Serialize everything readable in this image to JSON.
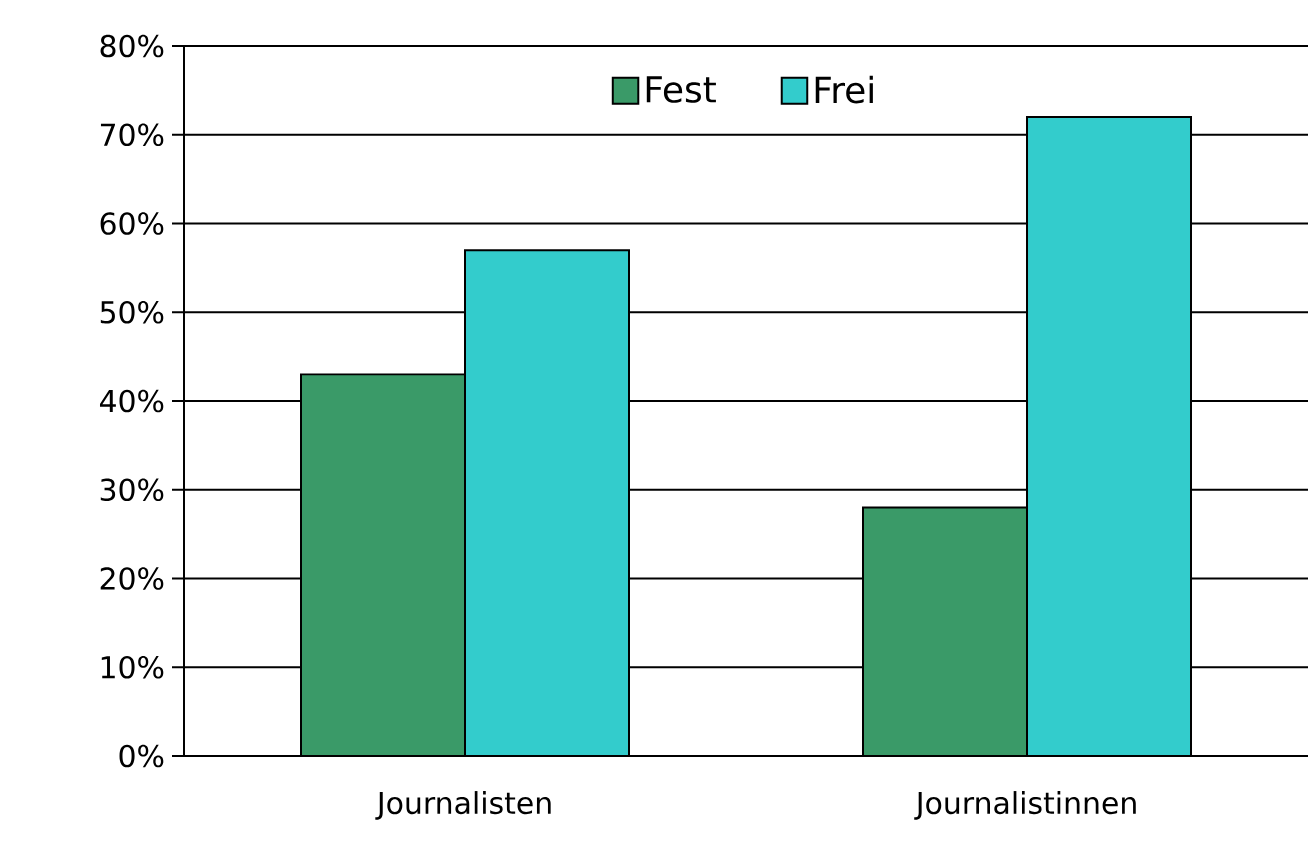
{
  "chart_data": {
    "type": "bar",
    "categories": [
      "Journalisten",
      "Journalistinnen"
    ],
    "series": [
      {
        "name": "Fest",
        "color": "#3a9a68",
        "values": [
          43,
          28
        ]
      },
      {
        "name": "Frei",
        "color": "#33cccc",
        "values": [
          57,
          72
        ]
      }
    ],
    "ylim": [
      0,
      80
    ],
    "yticks": [
      {
        "value": 0,
        "label": "0%"
      },
      {
        "value": 10,
        "label": "10%"
      },
      {
        "value": 20,
        "label": "20%"
      },
      {
        "value": 30,
        "label": "30%"
      },
      {
        "value": 40,
        "label": "40%"
      },
      {
        "value": 50,
        "label": "50%"
      },
      {
        "value": 60,
        "label": "60%"
      },
      {
        "value": 70,
        "label": "70%"
      },
      {
        "value": 80,
        "label": "80%"
      }
    ],
    "grid": "y",
    "legend": "top"
  }
}
